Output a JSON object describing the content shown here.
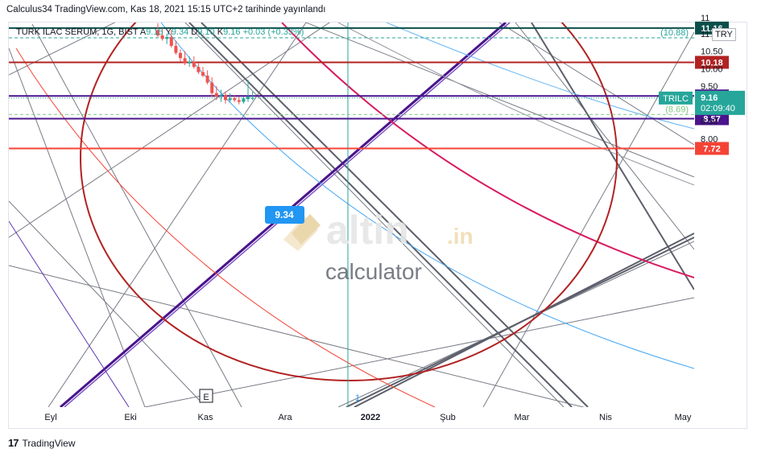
{
  "header": {
    "title": "Calculus34 TradingView.com, Kas 18, 2021 15:15 UTC+2 tarihinde yayınlandı"
  },
  "legend": {
    "symbol": "TURK ILAC SERUM, 1G, BIST",
    "open_label": "A",
    "open": "9.15",
    "high_label": "Y",
    "high": "9.34",
    "low_label": "D",
    "low": "9.10",
    "close_label": "K",
    "close": "9.16",
    "change": "+0.03 (+0.33%)"
  },
  "currency": "TRY",
  "watermark": {
    "brand": "altin",
    "tld": ".in",
    "sub": "calculator"
  },
  "footer": {
    "brand": "TradingView"
  },
  "colors": {
    "teal_dark": "#0b4f4b",
    "red": "#b22222",
    "purple": "#4a148c",
    "crimson": "#d81b60",
    "lightblue": "#42a5f5",
    "orange_red": "#f44336",
    "gray": "#787b86",
    "candle_up": "#26a69a",
    "candle_down": "#ef5350"
  },
  "chart_data": {
    "type": "candlestick",
    "x_ticks": [
      "Eyl",
      "Eki",
      "Kas",
      "Ara",
      "2022",
      "Şub",
      "Mar",
      "Nis",
      "May"
    ],
    "y_ticks": [
      "11",
      "11.00",
      "10.50",
      "10.00",
      "9.50",
      "8.50",
      "8.00"
    ],
    "ylim": [
      7.6,
      11.3
    ],
    "last_price": {
      "symbol": "TRILC",
      "value": "9.16",
      "countdown": "02:09:40"
    },
    "hlines": [
      {
        "label": "11.16",
        "value": 11.16,
        "color": "#0b4f4b"
      },
      {
        "label": "10.18",
        "value": 10.18,
        "color": "#b22222"
      },
      {
        "label": "9.22",
        "value": 9.22,
        "color": "#4a148c"
      },
      {
        "label": "8.57",
        "value": 8.57,
        "color": "#4a148c"
      },
      {
        "label": "7.72",
        "value": 7.72,
        "color": "#f44336"
      }
    ],
    "dashed_levels": [
      {
        "label": "(10.88)",
        "value": 10.88,
        "color": "#26a69a"
      },
      {
        "label": "(8.69)",
        "value": 8.69,
        "color": "#81c784"
      }
    ],
    "callout": "9.34",
    "marker": "E",
    "vline_label": "1",
    "candles": [
      [
        11.1,
        11.3,
        10.9,
        10.95
      ],
      [
        10.95,
        11.15,
        10.8,
        10.85
      ],
      [
        10.85,
        11.0,
        10.7,
        10.9
      ],
      [
        10.9,
        11.1,
        10.6,
        10.65
      ],
      [
        10.65,
        10.8,
        10.4,
        10.45
      ],
      [
        10.45,
        10.55,
        10.2,
        10.3
      ],
      [
        10.3,
        10.5,
        10.1,
        10.15
      ],
      [
        10.15,
        10.35,
        10.05,
        10.2
      ],
      [
        10.2,
        10.35,
        10.0,
        10.05
      ],
      [
        10.05,
        10.15,
        9.85,
        9.9
      ],
      [
        9.9,
        10.05,
        9.75,
        9.8
      ],
      [
        9.8,
        9.95,
        9.55,
        9.6
      ],
      [
        9.6,
        9.75,
        9.2,
        9.3
      ],
      [
        9.3,
        9.5,
        9.1,
        9.2
      ],
      [
        9.2,
        9.4,
        9.05,
        9.25
      ],
      [
        9.25,
        9.35,
        9.0,
        9.1
      ],
      [
        9.1,
        9.3,
        9.05,
        9.15
      ],
      [
        9.15,
        9.25,
        9.05,
        9.1
      ],
      [
        9.1,
        9.2,
        8.98,
        9.05
      ],
      [
        9.05,
        9.2,
        9.0,
        9.15
      ],
      [
        9.13,
        9.68,
        9.05,
        9.2
      ],
      [
        9.15,
        9.34,
        9.1,
        9.16
      ]
    ]
  }
}
